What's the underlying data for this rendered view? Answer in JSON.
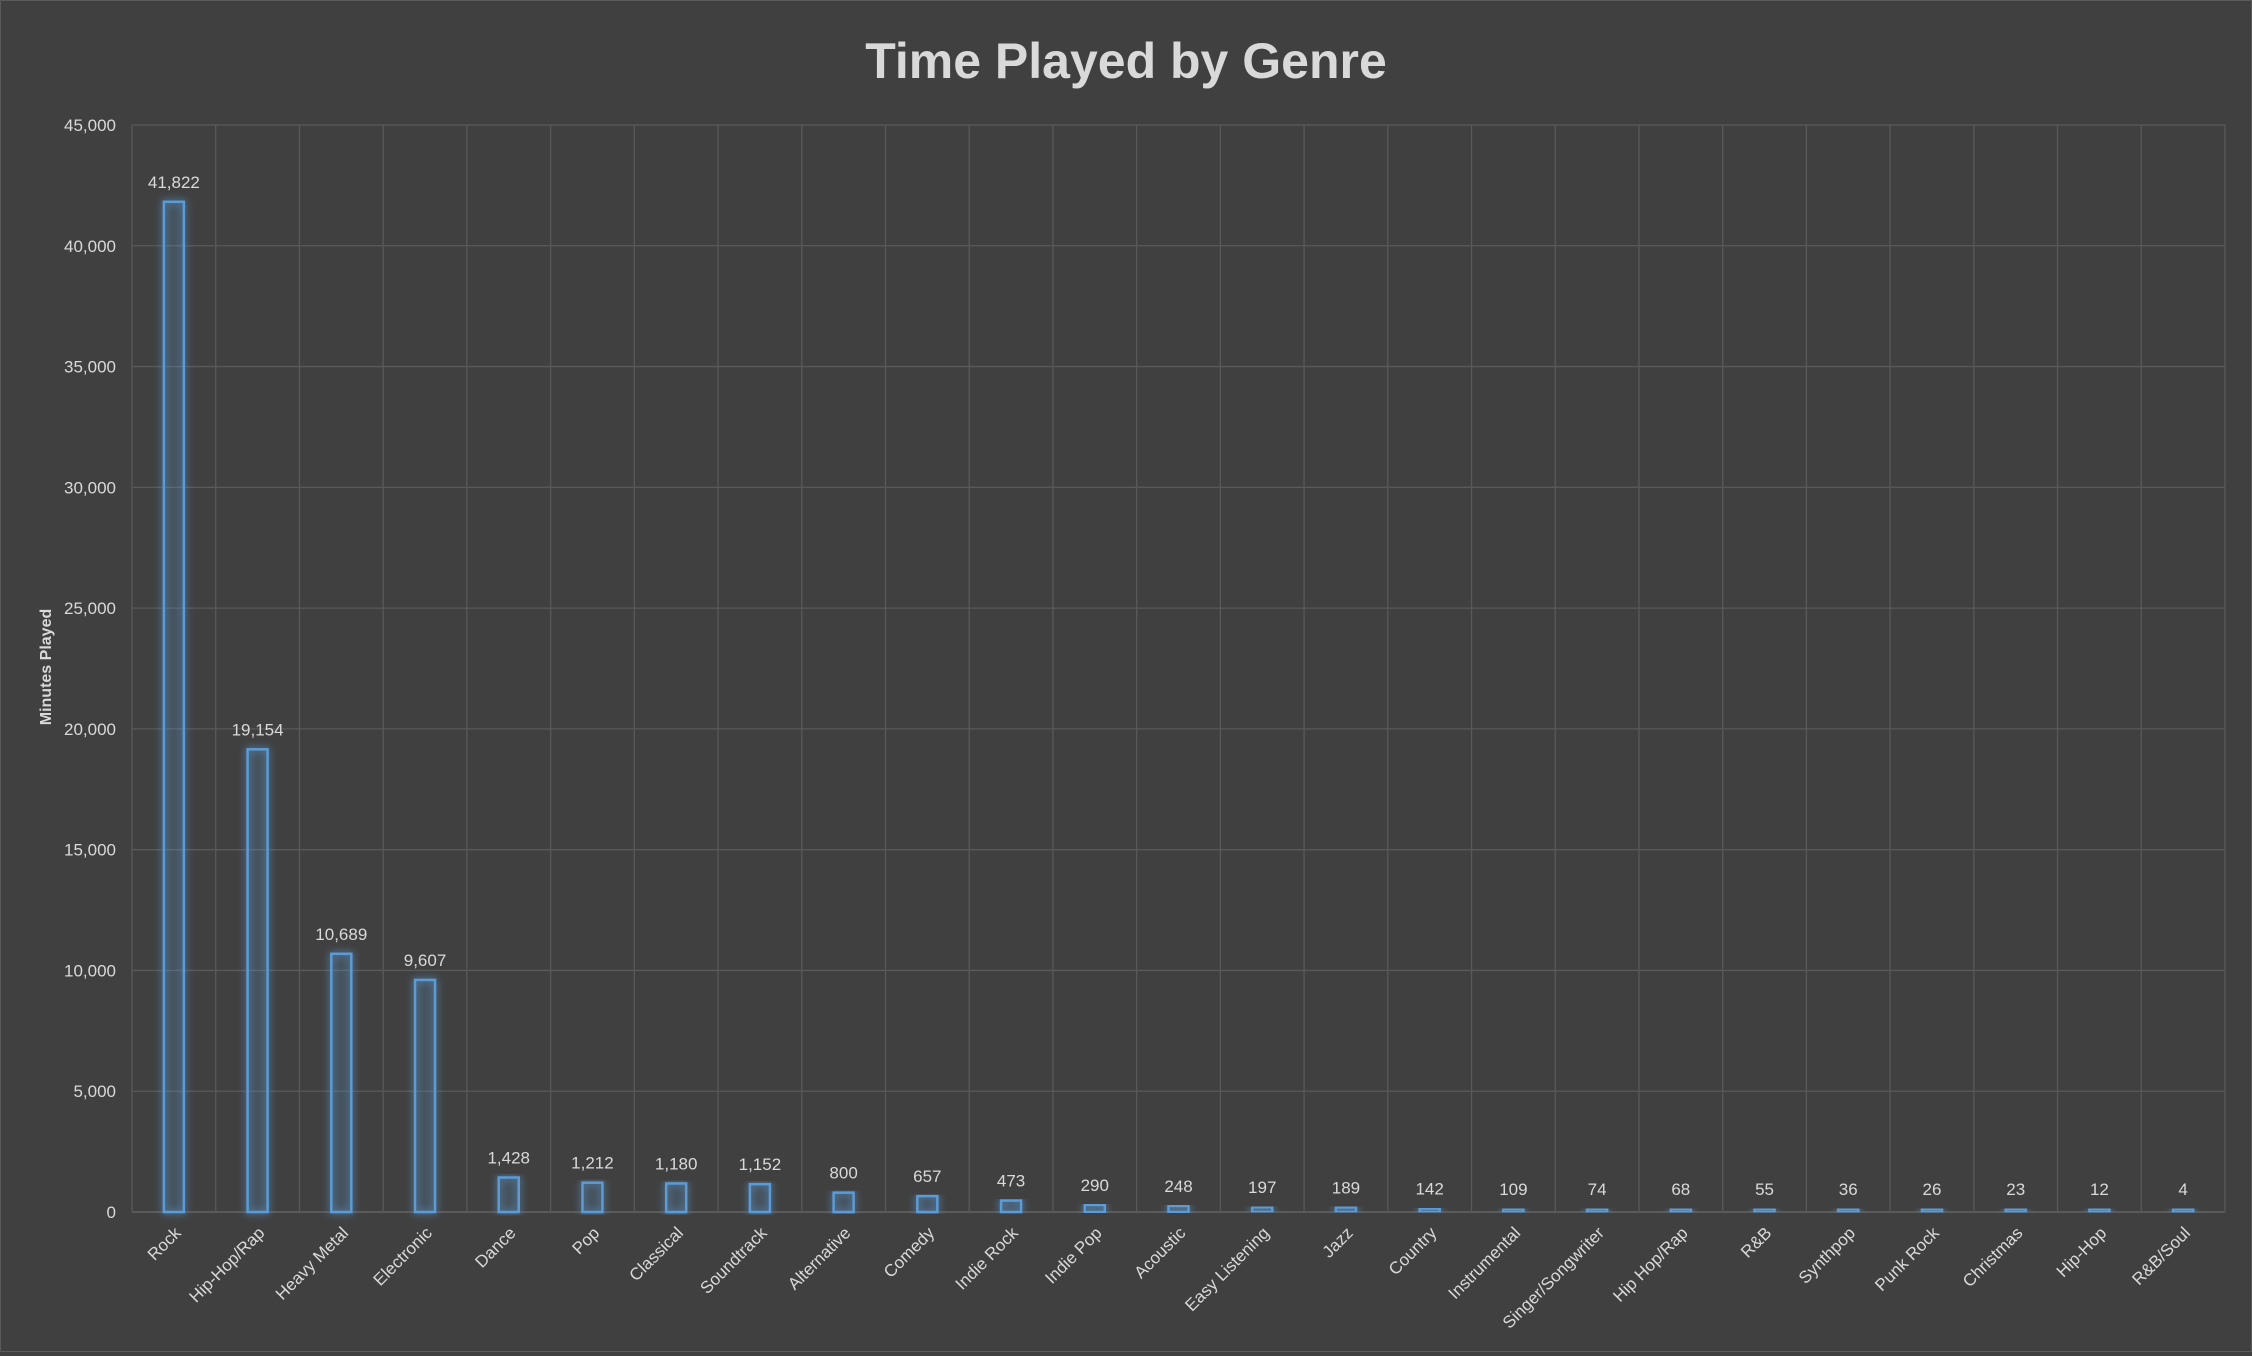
{
  "chart_data": {
    "type": "bar",
    "title": "Time Played by Genre",
    "xlabel": "",
    "ylabel": "Minutes Played",
    "ylim": [
      0,
      45000
    ],
    "yticks": [
      0,
      5000,
      10000,
      15000,
      20000,
      25000,
      30000,
      35000,
      40000,
      45000
    ],
    "ytick_labels": [
      "0",
      "5,000",
      "10,000",
      "15,000",
      "20,000",
      "25,000",
      "30,000",
      "35,000",
      "40,000",
      "45,000"
    ],
    "grid": true,
    "legend": "none",
    "colors": {
      "background": "#404040",
      "bar_outline": "#5b9bd5",
      "bar_glow": "#4a90e2",
      "gridline": "#595959",
      "text": "#d9d9d9"
    },
    "categories": [
      "Rock",
      "Hip-Hop/Rap",
      "Heavy Metal",
      "Electronic",
      "Dance",
      "Pop",
      "Classical",
      "Soundtrack",
      "Alternative",
      "Comedy",
      "Indie Rock",
      "Indie Pop",
      "Acoustic",
      "Easy Listening",
      "Jazz",
      "Country",
      "Instrumental",
      "Singer/Songwriter",
      "Hip Hop/Rap",
      "R&B",
      "Synthpop",
      "Punk Rock",
      "Christmas",
      "Hip-Hop",
      "R&B/Soul"
    ],
    "values": [
      41822,
      19154,
      10689,
      9607,
      1428,
      1212,
      1180,
      1152,
      800,
      657,
      473,
      290,
      248,
      197,
      189,
      142,
      109,
      74,
      68,
      55,
      36,
      26,
      23,
      12,
      4
    ],
    "data_labels": [
      "41,822",
      "19,154",
      "10,689",
      "9,607",
      "1,428",
      "1,212",
      "1,180",
      "1,152",
      "800",
      "657",
      "473",
      "290",
      "248",
      "197",
      "189",
      "142",
      "109",
      "74",
      "68",
      "55",
      "36",
      "26",
      "23",
      "12",
      "4"
    ]
  }
}
